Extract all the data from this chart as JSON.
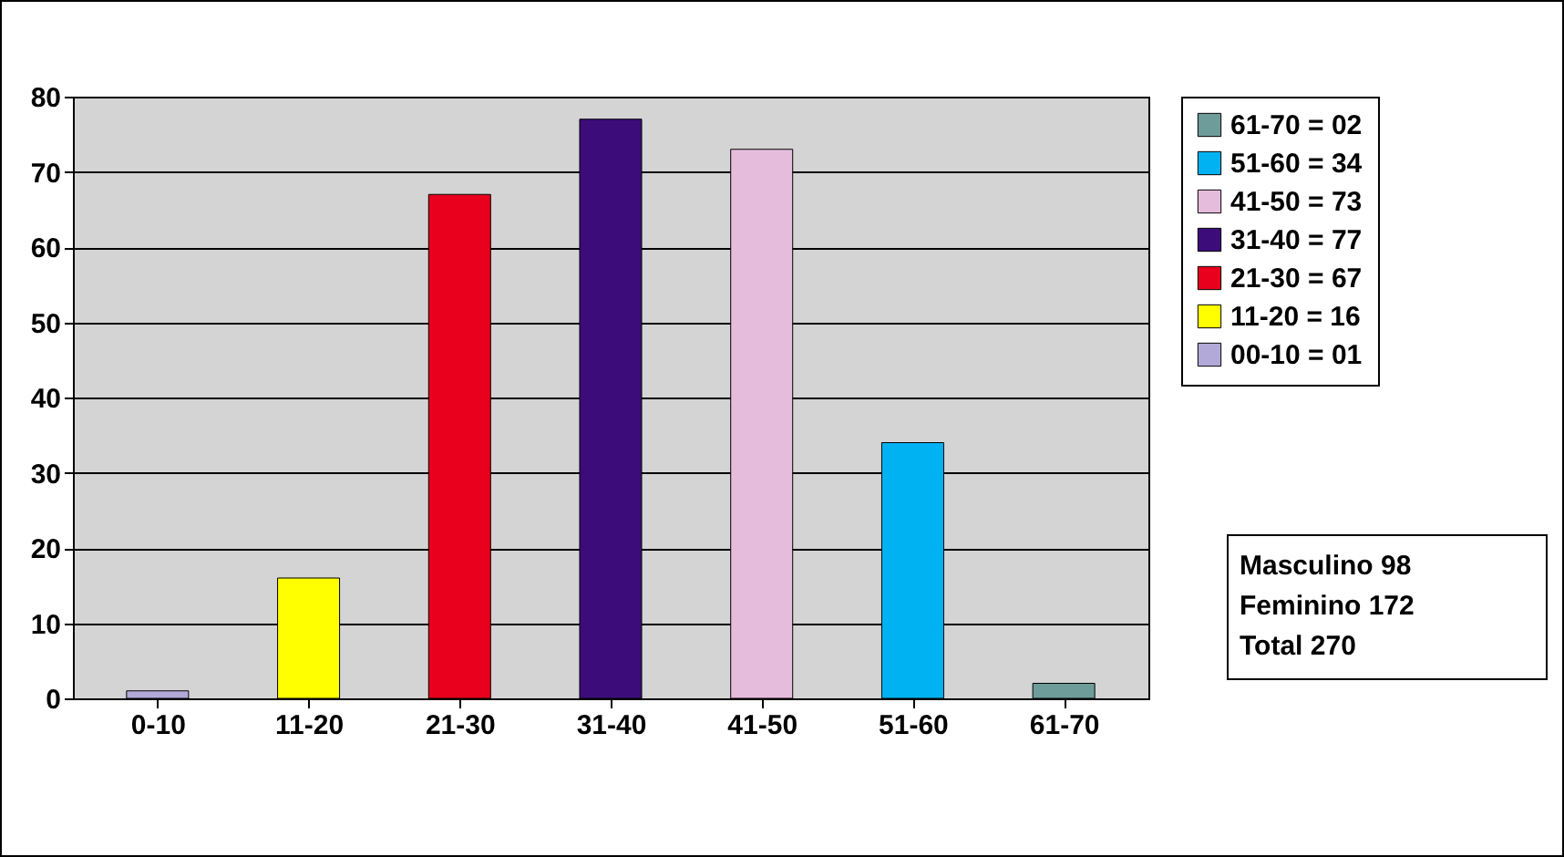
{
  "chart_data": {
    "type": "bar",
    "categories": [
      "0-10",
      "11-20",
      "21-30",
      "31-40",
      "41-50",
      "51-60",
      "61-70"
    ],
    "series": [
      {
        "name": "00-10 = 01",
        "color": "#b3a9d9",
        "values": [
          1,
          null,
          null,
          null,
          null,
          null,
          null
        ]
      },
      {
        "name": "11-20 = 16",
        "color": "#ffff00",
        "values": [
          null,
          16,
          null,
          null,
          null,
          null,
          null
        ]
      },
      {
        "name": "21-30 = 67",
        "color": "#e8001c",
        "values": [
          null,
          null,
          67,
          null,
          null,
          null,
          null
        ]
      },
      {
        "name": "31-40 = 77",
        "color": "#3c0d7a",
        "values": [
          null,
          null,
          null,
          77,
          null,
          null,
          null
        ]
      },
      {
        "name": "41-50 = 73",
        "color": "#e6bcdc",
        "values": [
          null,
          null,
          null,
          null,
          73,
          null,
          null
        ]
      },
      {
        "name": "51-60 = 34",
        "color": "#00b2f2",
        "values": [
          null,
          null,
          null,
          null,
          null,
          34,
          null
        ]
      },
      {
        "name": "61-70 = 02",
        "color": "#6e9c9a",
        "values": [
          null,
          null,
          null,
          null,
          null,
          null,
          2
        ]
      }
    ],
    "ylim": [
      0,
      80
    ],
    "yticks": [
      0,
      10,
      20,
      30,
      40,
      50,
      60,
      70,
      80
    ],
    "grid": "y",
    "legend": "top right",
    "annotations": [
      "Masculino 98",
      "Feminino 172",
      "Total 270"
    ]
  }
}
